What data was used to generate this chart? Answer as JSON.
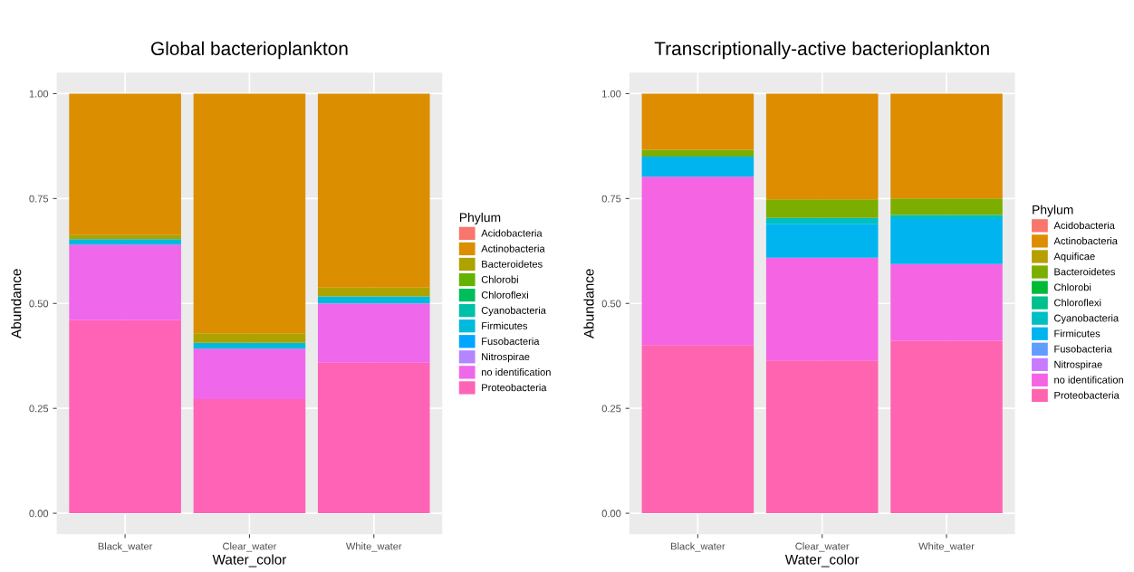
{
  "chart_data": [
    {
      "type": "bar",
      "stacked": true,
      "title": "Global bacterioplankton",
      "xlabel": "Water_color",
      "ylabel": "Abundance",
      "legend_title": "Phylum",
      "legend": "right",
      "grid": true,
      "categories": [
        "Black_water",
        "Clear_water",
        "White_water"
      ],
      "ylim": [
        -0.05,
        1.05
      ],
      "yticks": [
        {
          "value": 0,
          "label": "0.00"
        },
        {
          "value": 0.25,
          "label": "0.25"
        },
        {
          "value": 0.5,
          "label": "0.50"
        },
        {
          "value": 0.75,
          "label": "0.75"
        },
        {
          "value": 1,
          "label": "1.00"
        }
      ],
      "series": [
        {
          "name": "Proteobacteria",
          "color": "#ff63b6",
          "values": [
            0.46,
            0.272,
            0.359
          ]
        },
        {
          "name": "no identification",
          "color": "#ef67eb",
          "values": [
            0.18,
            0.12,
            0.141
          ]
        },
        {
          "name": "Nitrospirae",
          "color": "#b385ff",
          "values": [
            0,
            0,
            0
          ]
        },
        {
          "name": "Fusobacteria",
          "color": "#00a6ff",
          "values": [
            0,
            0,
            0
          ]
        },
        {
          "name": "Firmicutes",
          "color": "#00bade",
          "values": [
            0.013,
            0.014,
            0.017
          ]
        },
        {
          "name": "Cyanobacteria",
          "color": "#00c1a7",
          "values": [
            0,
            0,
            0
          ]
        },
        {
          "name": "Chloroflexi",
          "color": "#00bd5c",
          "values": [
            0,
            0,
            0
          ]
        },
        {
          "name": "Chlorobi",
          "color": "#64b200",
          "values": [
            0,
            0,
            0
          ]
        },
        {
          "name": "Bacteroidetes",
          "color": "#aea200",
          "values": [
            0.011,
            0.023,
            0.021
          ]
        },
        {
          "name": "Actinobacteria",
          "color": "#db8e00",
          "values": [
            0.336,
            0.571,
            0.462
          ]
        },
        {
          "name": "Acidobacteria",
          "color": "#f8766d",
          "values": [
            0,
            0,
            0
          ]
        }
      ]
    },
    {
      "type": "bar",
      "stacked": true,
      "title": "Transcriptionally-active bacterioplankton",
      "xlabel": "Water_color",
      "ylabel": "Abundance",
      "legend_title": "Phylum",
      "legend": "right",
      "grid": true,
      "categories": [
        "Black_water",
        "Clear_water",
        "White_water"
      ],
      "ylim": [
        -0.05,
        1.05
      ],
      "yticks": [
        {
          "value": 0,
          "label": "0.00"
        },
        {
          "value": 0.25,
          "label": "0.25"
        },
        {
          "value": 0.5,
          "label": "0.50"
        },
        {
          "value": 0.75,
          "label": "0.75"
        },
        {
          "value": 1,
          "label": "1.00"
        }
      ],
      "series": [
        {
          "name": "Proteobacteria",
          "color": "#ff64b0",
          "values": [
            0.401,
            0.364,
            0.411
          ]
        },
        {
          "name": "no identification",
          "color": "#f564e3",
          "values": [
            0.401,
            0.245,
            0.183
          ]
        },
        {
          "name": "Nitrospirae",
          "color": "#c77cff",
          "values": [
            0,
            0,
            0
          ]
        },
        {
          "name": "Fusobacteria",
          "color": "#619cff",
          "values": [
            0,
            0,
            0
          ]
        },
        {
          "name": "Firmicutes",
          "color": "#00b4f0",
          "values": [
            0.048,
            0.08,
            0.107
          ]
        },
        {
          "name": "Cyanobacteria",
          "color": "#00bfc4",
          "values": [
            0,
            0.015,
            0.01
          ]
        },
        {
          "name": "Chloroflexi",
          "color": "#00c08b",
          "values": [
            0,
            0,
            0
          ]
        },
        {
          "name": "Chlorobi",
          "color": "#00ba38",
          "values": [
            0,
            0,
            0
          ]
        },
        {
          "name": "Bacteroidetes",
          "color": "#7cae00",
          "values": [
            0.016,
            0.044,
            0.039
          ]
        },
        {
          "name": "Aquificae",
          "color": "#b79f00",
          "values": [
            0,
            0,
            0
          ]
        },
        {
          "name": "Actinobacteria",
          "color": "#de8c00",
          "values": [
            0.134,
            0.252,
            0.25
          ]
        },
        {
          "name": "Acidobacteria",
          "color": "#f8766d",
          "values": [
            0,
            0,
            0
          ]
        }
      ]
    }
  ]
}
